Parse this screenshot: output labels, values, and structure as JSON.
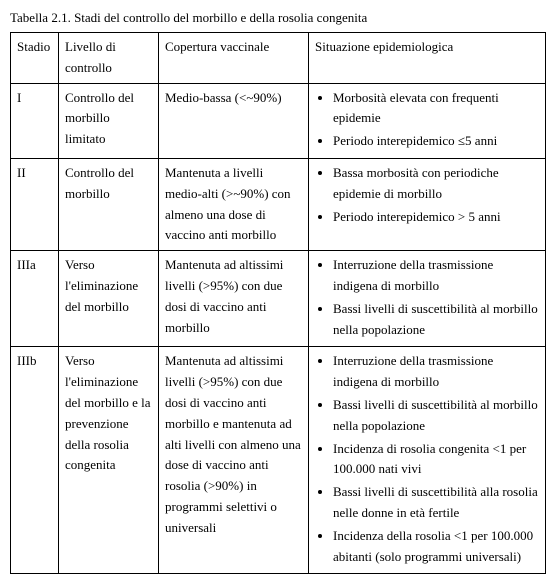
{
  "title": "Tabella 2.1. Stadi del controllo del morbillo e della rosolia congenita",
  "headers": {
    "stadio": "Stadio",
    "livello": "Livello di controllo",
    "copertura": "Copertura vaccinale",
    "epi": "Situazione epidemiologica"
  },
  "rows": {
    "r1": {
      "stadio": "I",
      "livello": "Controllo del morbillo limitato",
      "copertura": "Medio-bassa (<~90%)",
      "epi": [
        "Morbosità elevata con frequenti epidemie",
        "Periodo interepidemico ≤5 anni"
      ]
    },
    "r2": {
      "stadio": "II",
      "livello": "Controllo del morbillo",
      "copertura": "Mantenuta a livelli medio-alti (>~90%) con almeno una dose di vaccino anti morbillo",
      "epi": [
        "Bassa morbosità con periodiche epidemie di morbillo",
        "Periodo interepidemico > 5 anni"
      ]
    },
    "r3": {
      "stadio": "IIIa",
      "livello": "Verso l'eliminazione del morbillo",
      "copertura": "Mantenuta ad altissimi livelli (>95%) con due dosi di vaccino anti morbillo",
      "epi": [
        "Interruzione della trasmissione indigena di morbillo",
        "Bassi livelli di suscettibilità al morbillo nella popolazione"
      ]
    },
    "r4": {
      "stadio": "IIIb",
      "livello": "Verso l'eliminazione del morbillo e la prevenzione della rosolia congenita",
      "copertura": "Mantenuta ad altissimi livelli (>95%) con due dosi di vaccino anti morbillo e mantenuta ad alti livelli con almeno una dose di vaccino anti rosolia (>90%) in programmi selettivi o universali",
      "epi": [
        "Interruzione della trasmissione indigena di morbillo",
        "Bassi livelli di suscettibilità al morbillo nella popolazione",
        "Incidenza di rosolia congenita <1 per 100.000 nati vivi",
        "Bassi livelli di suscettibilità alla rosolia nelle donne in età fertile",
        "Incidenza della rosolia <1 per 100.000 abitanti (solo programmi universali)"
      ]
    }
  }
}
